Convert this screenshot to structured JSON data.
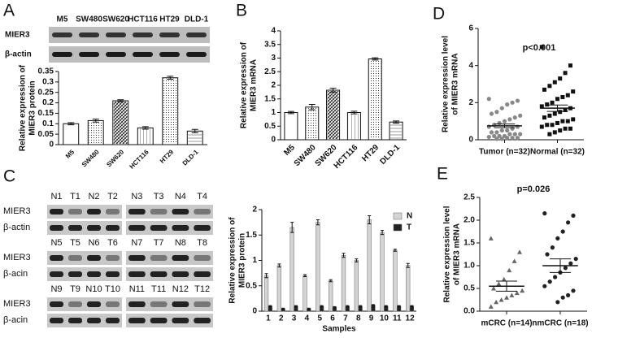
{
  "panel_labels": [
    "A",
    "B",
    "C",
    "D",
    "E"
  ],
  "blot_a": {
    "lanes": [
      "M5",
      "SW480",
      "SW620",
      "HCT116",
      "HT29",
      "DLD-1"
    ],
    "rows": [
      "MIER3",
      "β-actin"
    ]
  },
  "blot_c": {
    "rows": [
      {
        "labels": [
          "MIER3",
          "β-actin"
        ],
        "groups": [
          [
            "N1",
            "T1",
            "N2",
            "T2"
          ],
          [
            "N3",
            "T3",
            "N4",
            "T4"
          ]
        ]
      },
      {
        "labels": [
          "MIER3",
          "β-acin"
        ],
        "groups": [
          [
            "N5",
            "T5",
            "N6",
            "T6"
          ],
          [
            "N7",
            "T7",
            "N8",
            "T8"
          ]
        ]
      },
      {
        "labels": [
          "MIER3",
          "β-acin"
        ],
        "groups": [
          [
            "N9",
            "T9",
            "N10",
            "T10"
          ],
          [
            "N11",
            "T11",
            "N12",
            "T12"
          ]
        ]
      }
    ]
  },
  "chart_data": [
    {
      "type": "bar",
      "ylabel": [
        "Relative expression of",
        "MIER3 protein"
      ],
      "categories": [
        "M5",
        "SW480",
        "SW620",
        "HCT116",
        "HT29",
        "DLD-1"
      ],
      "values": [
        0.1,
        0.115,
        0.21,
        0.08,
        0.32,
        0.065
      ],
      "errors": [
        0.005,
        0.007,
        0.005,
        0.006,
        0.007,
        0.008
      ],
      "color": "#ffffff",
      "ylim": [
        0,
        0.35
      ],
      "yticks": [
        0,
        0.05,
        0.1,
        0.15,
        0.2,
        0.25,
        0.3,
        0.35
      ]
    },
    {
      "type": "bar",
      "ylabel": [
        "Relative expression of",
        "MIER3 mRNA"
      ],
      "categories": [
        "M5",
        "SW480",
        "SW620",
        "HCT116",
        "HT29",
        "DLD-1"
      ],
      "values": [
        1.0,
        1.2,
        1.82,
        1.0,
        2.97,
        0.65
      ],
      "errors": [
        0.04,
        0.1,
        0.07,
        0.05,
        0.04,
        0.04
      ],
      "color": "#ffffff",
      "ylim": [
        0,
        4
      ],
      "yticks": [
        0,
        0.5,
        1,
        1.5,
        2,
        2.5,
        3,
        3.5,
        4
      ]
    },
    {
      "type": "grouped_bar",
      "ylabel": [
        "Relative expression of",
        "MIER3 protein"
      ],
      "xlabel": "Samples",
      "categories": [
        "1",
        "2",
        "3",
        "4",
        "5",
        "6",
        "7",
        "8",
        "9",
        "10",
        "11",
        "12"
      ],
      "series": [
        {
          "name": "N",
          "color": "#d4d4d4",
          "values": [
            0.7,
            0.9,
            1.65,
            0.7,
            1.75,
            0.6,
            1.1,
            1.0,
            1.8,
            1.55,
            1.2,
            0.9
          ],
          "errors": [
            0.04,
            0.03,
            0.1,
            0.02,
            0.05,
            0.02,
            0.04,
            0.03,
            0.08,
            0.04,
            0.02,
            0.04
          ]
        },
        {
          "name": "T",
          "color": "#222222",
          "values": [
            0.1,
            0.05,
            0.1,
            0.05,
            0.1,
            0.08,
            0.1,
            0.1,
            0.12,
            0.1,
            0.1,
            0.1
          ],
          "errors": [
            0.01,
            0.01,
            0.01,
            0.01,
            0.01,
            0.01,
            0.01,
            0.01,
            0.01,
            0.01,
            0.01,
            0.01
          ]
        }
      ],
      "legend": "upper right",
      "ylim": [
        0,
        2
      ],
      "yticks": [
        0,
        0.5,
        1,
        1.5,
        2
      ]
    },
    {
      "type": "dotplot",
      "ylabel": [
        "Relative expression level",
        "of MIER3 mRNA"
      ],
      "annotation": "p<0.001",
      "categories": [
        "Tumor (n=32)",
        "Normal (n=32)"
      ],
      "markers": [
        "circle",
        "square"
      ],
      "colors": [
        "#888888",
        "#111111"
      ],
      "points": [
        [
          2.2,
          2.1,
          2.0,
          1.9,
          1.7,
          1.5,
          1.4,
          1.3,
          1.2,
          1.1,
          1.0,
          0.9,
          0.8,
          0.7,
          0.7,
          0.6,
          0.5,
          0.5,
          0.4,
          0.4,
          0.3,
          0.3,
          0.3,
          0.2,
          0.2,
          0.2,
          0.15,
          0.1,
          0.1,
          0.1,
          0.05,
          0.05
        ],
        [
          5.0,
          4.0,
          3.6,
          3.3,
          3.1,
          2.9,
          2.7,
          2.6,
          2.4,
          2.3,
          2.2,
          2.0,
          1.9,
          1.8,
          1.7,
          1.6,
          1.5,
          1.4,
          1.3,
          1.2,
          1.1,
          1.0,
          1.0,
          0.9,
          0.8,
          0.8,
          0.7,
          0.6,
          0.6,
          0.5,
          0.4,
          0.3
        ]
      ],
      "means": [
        0.75,
        1.7
      ],
      "sems": [
        0.1,
        0.17
      ],
      "ylim": [
        0,
        6
      ],
      "yticks": [
        0,
        2,
        4,
        6
      ]
    },
    {
      "type": "dotplot",
      "ylabel": [
        "Relative expression level",
        "of MIER3 mRNA"
      ],
      "annotation": "p=0.026",
      "categories": [
        "mCRC (n=14)",
        "nmCRC (n=18)"
      ],
      "markers": [
        "triangle",
        "circle"
      ],
      "colors": [
        "#666666",
        "#222222"
      ],
      "points": [
        [
          1.6,
          1.3,
          1.1,
          0.9,
          0.7,
          0.6,
          0.5,
          0.45,
          0.4,
          0.35,
          0.3,
          0.25,
          0.2,
          0.1
        ],
        [
          2.15,
          2.1,
          1.95,
          1.75,
          1.6,
          1.4,
          1.25,
          1.15,
          1.05,
          0.95,
          0.85,
          0.75,
          0.65,
          0.55,
          0.45,
          0.35,
          0.3,
          0.2
        ]
      ],
      "means": [
        0.55,
        1.0
      ],
      "sems": [
        0.11,
        0.15
      ],
      "ylim": [
        0,
        2.5
      ],
      "yticks": [
        {
          "value": 0,
          "label": "0.0"
        },
        {
          "value": 0.5,
          "label": "0.5"
        },
        {
          "value": 1,
          "label": "1.0"
        },
        {
          "value": 1.5,
          "label": "1.5"
        },
        {
          "value": 2,
          "label": "2.0"
        },
        {
          "value": 2.5,
          "label": "2.5"
        }
      ]
    }
  ]
}
